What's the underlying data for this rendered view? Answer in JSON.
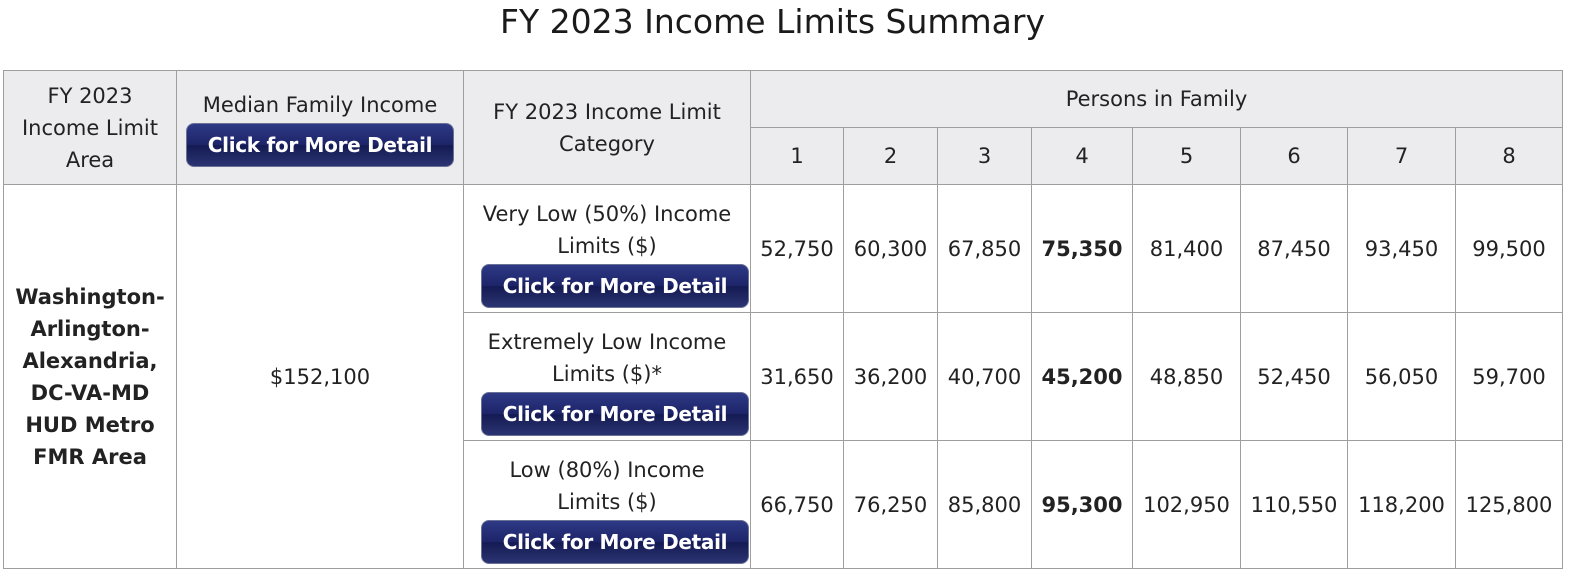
{
  "title": "FY 2023 Income Limits Summary",
  "headers": {
    "area": "FY 2023 Income Limit Area",
    "median": "Median Family Income",
    "category": "FY 2023 Income Limit Category",
    "persons": "Persons in Family",
    "persons_cols": [
      "1",
      "2",
      "3",
      "4",
      "5",
      "6",
      "7",
      "8"
    ]
  },
  "detail_button_label": "Click for More Detail",
  "area_name": "Washington-Arlington-Alexandria, DC-VA-MD HUD Metro FMR Area",
  "median_income": "$152,100",
  "rows": [
    {
      "category": "Very Low (50%) Income Limits ($)",
      "values": [
        "52,750",
        "60,300",
        "67,850",
        "75,350",
        "81,400",
        "87,450",
        "93,450",
        "99,500"
      ]
    },
    {
      "category": "Extremely Low Income Limits ($)*",
      "values": [
        "31,650",
        "36,200",
        "40,700",
        "45,200",
        "48,850",
        "52,450",
        "56,050",
        "59,700"
      ]
    },
    {
      "category": "Low (80%) Income Limits ($)",
      "values": [
        "66,750",
        "76,250",
        "85,800",
        "95,300",
        "102,950",
        "110,550",
        "118,200",
        "125,800"
      ]
    }
  ]
}
